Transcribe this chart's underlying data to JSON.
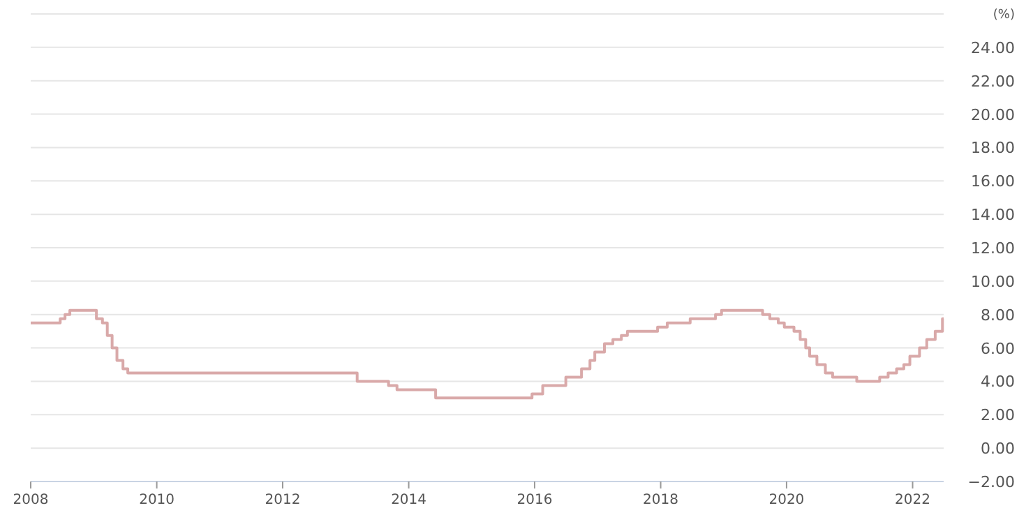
{
  "chart_data": {
    "type": "step",
    "ylabel": "(%)",
    "grid": "y",
    "marker": "none",
    "line_style": "solid",
    "x": [
      "2008-01-01",
      "2008-06-20",
      "2008-07-18",
      "2008-08-15",
      "2009-01-16",
      "2009-02-20",
      "2009-03-20",
      "2009-04-17",
      "2009-05-15",
      "2009-06-19",
      "2009-07-17",
      "2013-03-08",
      "2013-09-06",
      "2013-10-25",
      "2014-06-06",
      "2015-12-17",
      "2016-02-17",
      "2016-06-30",
      "2016-09-29",
      "2016-11-17",
      "2016-12-15",
      "2017-02-09",
      "2017-03-30",
      "2017-05-18",
      "2017-06-22",
      "2017-12-14",
      "2018-02-08",
      "2018-06-21",
      "2018-11-15",
      "2018-12-20",
      "2019-08-15",
      "2019-09-26",
      "2019-11-14",
      "2019-12-19",
      "2020-02-13",
      "2020-03-20",
      "2020-04-21",
      "2020-05-14",
      "2020-06-25",
      "2020-08-13",
      "2020-09-24",
      "2021-02-11",
      "2021-06-24",
      "2021-08-12",
      "2021-09-30",
      "2021-11-11",
      "2021-12-16",
      "2022-02-10",
      "2022-03-24",
      "2022-05-12",
      "2022-06-23",
      "2022-06-30"
    ],
    "series": [
      {
        "color": "#d9a9a9",
        "values": [
          7.5,
          7.75,
          8,
          8.25,
          7.75,
          7.5,
          6.75,
          6,
          5.25,
          4.75,
          4.5,
          4,
          3.75,
          3.5,
          3,
          3.25,
          3.75,
          4.25,
          4.75,
          5.25,
          5.75,
          6.25,
          6.5,
          6.75,
          7,
          7.25,
          7.5,
          7.75,
          8,
          8.25,
          8,
          7.75,
          7.5,
          7.25,
          7,
          6.5,
          6,
          5.5,
          5,
          4.5,
          4.25,
          4,
          4.25,
          4.5,
          4.75,
          5,
          5.5,
          6,
          6.5,
          7,
          7.75,
          7.75
        ]
      }
    ],
    "xlim": [
      "2008-01-01",
      "2022-06-30"
    ],
    "xticks": [
      {
        "value": "2008-01-01",
        "label": "2008"
      },
      {
        "value": "2010-01-01",
        "label": "2010"
      },
      {
        "value": "2012-01-01",
        "label": "2012"
      },
      {
        "value": "2014-01-01",
        "label": "2014"
      },
      {
        "value": "2016-01-01",
        "label": "2016"
      },
      {
        "value": "2018-01-01",
        "label": "2018"
      },
      {
        "value": "2020-01-01",
        "label": "2020"
      },
      {
        "value": "2022-01-01",
        "label": "2022"
      }
    ],
    "ylim": [
      -2,
      26
    ],
    "yticks": [
      {
        "value": -2,
        "label": "−2.00"
      },
      {
        "value": 0,
        "label": "0.00"
      },
      {
        "value": 2,
        "label": "2.00"
      },
      {
        "value": 4,
        "label": "4.00"
      },
      {
        "value": 6,
        "label": "6.00"
      },
      {
        "value": 8,
        "label": "8.00"
      },
      {
        "value": 10,
        "label": "10.00"
      },
      {
        "value": 12,
        "label": "12.00"
      },
      {
        "value": 14,
        "label": "14.00"
      },
      {
        "value": 16,
        "label": "16.00"
      },
      {
        "value": 18,
        "label": "18.00"
      },
      {
        "value": 20,
        "label": "20.00"
      },
      {
        "value": 22,
        "label": "22.00"
      },
      {
        "value": 24,
        "label": "24.00"
      },
      {
        "value": 26,
        "label": null
      }
    ]
  }
}
